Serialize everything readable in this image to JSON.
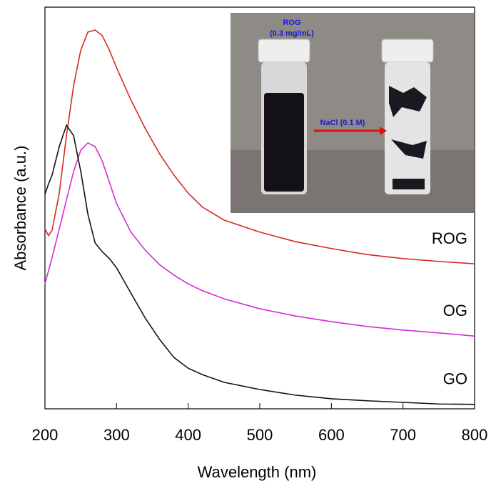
{
  "chart_data": {
    "type": "line",
    "x_label": "Wavelength (nm)",
    "y_label": "Absorbance (a.u.)",
    "x": [
      200,
      205,
      210,
      220,
      230,
      240,
      250,
      260,
      270,
      280,
      290,
      300,
      320,
      340,
      360,
      380,
      400,
      420,
      450,
      500,
      550,
      600,
      650,
      700,
      750,
      800
    ],
    "series": [
      {
        "name": "ROG",
        "color": "#d42a20",
        "values": [
          0.448,
          0.431,
          0.445,
          0.537,
          0.68,
          0.804,
          0.893,
          0.938,
          0.943,
          0.929,
          0.893,
          0.849,
          0.769,
          0.698,
          0.635,
          0.582,
          0.537,
          0.502,
          0.47,
          0.44,
          0.416,
          0.399,
          0.384,
          0.374,
          0.367,
          0.361
        ]
      },
      {
        "name": "OG",
        "color": "#d42ad8",
        "values": [
          0.311,
          0.344,
          0.377,
          0.448,
          0.52,
          0.591,
          0.644,
          0.662,
          0.653,
          0.617,
          0.564,
          0.511,
          0.44,
          0.395,
          0.359,
          0.333,
          0.311,
          0.294,
          0.274,
          0.249,
          0.231,
          0.217,
          0.205,
          0.196,
          0.189,
          0.181
        ]
      },
      {
        "name": "GO",
        "color": "#111111",
        "values": [
          0.534,
          0.56,
          0.582,
          0.653,
          0.706,
          0.68,
          0.591,
          0.484,
          0.413,
          0.391,
          0.374,
          0.351,
          0.288,
          0.226,
          0.173,
          0.128,
          0.101,
          0.085,
          0.066,
          0.048,
          0.034,
          0.025,
          0.02,
          0.016,
          0.012,
          0.011
        ]
      }
    ],
    "xlim": [
      200,
      800
    ],
    "ylim": [
      0,
      1
    ],
    "xticks": [
      200,
      300,
      400,
      500,
      600,
      700,
      800
    ],
    "annotations": [
      "ROG",
      "(0.3 mg/mL)",
      "NaCl (0.1 M)"
    ]
  }
}
